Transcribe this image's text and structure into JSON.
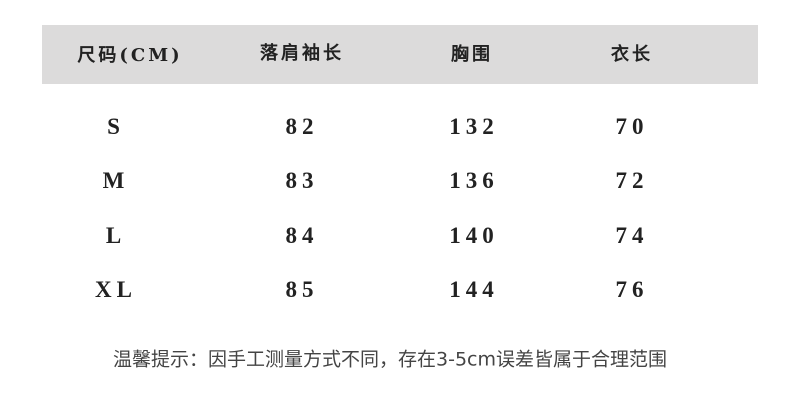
{
  "table": {
    "headers": [
      "尺码(CM)",
      "落肩袖长",
      "胸围",
      "衣长"
    ],
    "rows": [
      [
        "S",
        "82",
        "132",
        "70"
      ],
      [
        "M",
        "83",
        "136",
        "72"
      ],
      [
        "L",
        "84",
        "140",
        "74"
      ],
      [
        "XL",
        "85",
        "144",
        "76"
      ]
    ],
    "header_background": "#dcdbdb"
  },
  "note": "温馨提示：因手工测量方式不同，存在3-5cm误差皆属于合理范围"
}
